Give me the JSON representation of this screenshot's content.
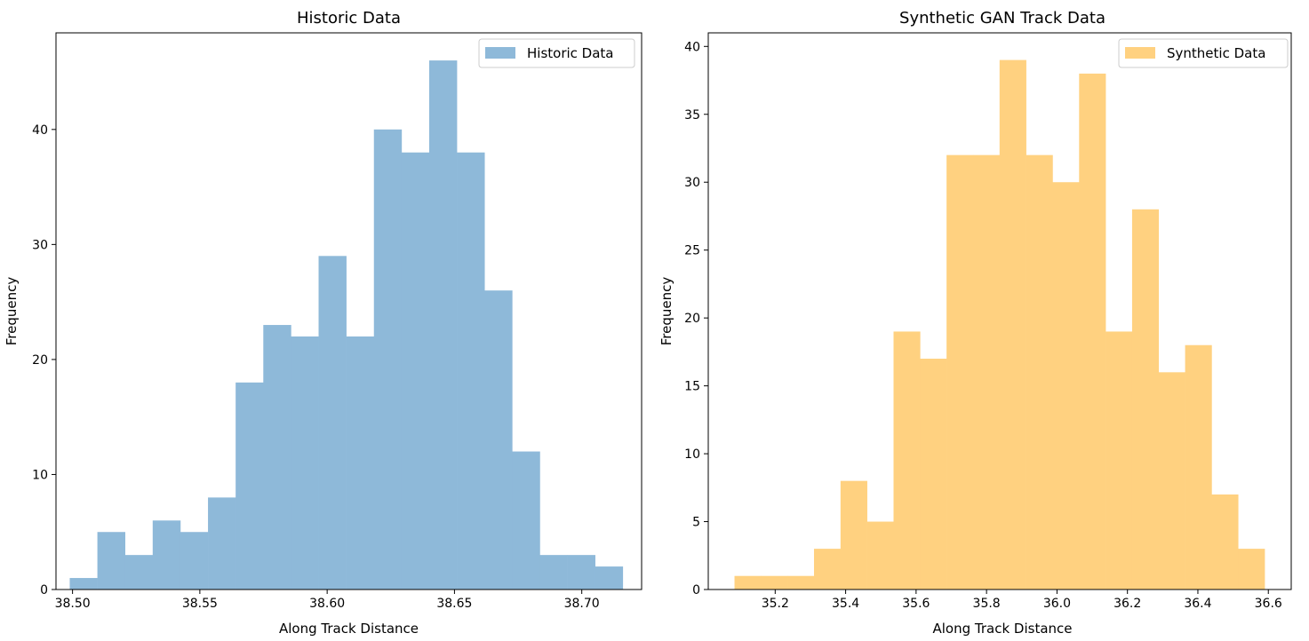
{
  "chart_data": [
    {
      "type": "bar",
      "title": "Historic Data",
      "xlabel": "Along Track Distance",
      "ylabel": "Frequency",
      "legend": {
        "label": "Historic Data",
        "position": "top-right"
      },
      "color": "#8eb9d9",
      "xlim": [
        38.4935,
        38.7235
      ],
      "ylim": [
        0,
        48.4
      ],
      "xticks": [
        38.5,
        38.55,
        38.6,
        38.65,
        38.7
      ],
      "xtick_labels": [
        "38.50",
        "38.55",
        "38.60",
        "38.65",
        "38.70"
      ],
      "yticks": [
        0,
        10,
        20,
        30,
        40
      ],
      "ytick_labels": [
        "0",
        "10",
        "20",
        "30",
        "40"
      ],
      "bin_start": 38.4989,
      "bin_width": 0.01086,
      "values": [
        1,
        5,
        3,
        6,
        5,
        8,
        18,
        23,
        22,
        29,
        22,
        40,
        38,
        46,
        38,
        26,
        12,
        3,
        3,
        2
      ]
    },
    {
      "type": "bar",
      "title": "Synthetic GAN Track Data",
      "xlabel": "Along Track Distance",
      "ylabel": "Frequency",
      "legend": {
        "label": "Synthetic Data",
        "position": "top-right"
      },
      "color": "#ffd180",
      "xlim": [
        35.01,
        36.665
      ],
      "ylim": [
        0,
        41
      ],
      "xticks": [
        35.2,
        35.4,
        35.6,
        35.8,
        36.0,
        36.2,
        36.4,
        36.6
      ],
      "xtick_labels": [
        "35.2",
        "35.4",
        "35.6",
        "35.8",
        "36.0",
        "36.2",
        "36.4",
        "36.6"
      ],
      "yticks": [
        0,
        5,
        10,
        15,
        20,
        25,
        30,
        35,
        40
      ],
      "ytick_labels": [
        "0",
        "5",
        "10",
        "15",
        "20",
        "25",
        "30",
        "35",
        "40"
      ],
      "bin_start": 35.0845,
      "bin_width": 0.07525,
      "values": [
        1,
        1,
        1,
        3,
        8,
        5,
        19,
        17,
        32,
        32,
        39,
        32,
        30,
        38,
        19,
        28,
        16,
        18,
        7,
        3
      ]
    }
  ]
}
